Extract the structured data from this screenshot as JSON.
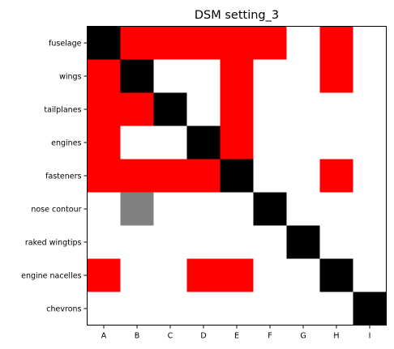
{
  "chart_data": {
    "type": "heatmap",
    "title": "DSM setting_3",
    "xlabel": "",
    "ylabel": "",
    "row_labels": [
      "fuselage",
      "wings",
      "tailplanes",
      "engines",
      "fasteners",
      "nose contour",
      "raked wingtips",
      "engine nacelles",
      "chevrons"
    ],
    "col_labels": [
      "A",
      "B",
      "C",
      "D",
      "E",
      "F",
      "G",
      "H",
      "I"
    ],
    "legend": {
      "0": "none",
      "1": "dependency",
      "2": "weak dependency",
      "d": "diagonal"
    },
    "colors": {
      "0": "#ffffff",
      "1": "#ff0000",
      "2": "#808080",
      "d": "#000000"
    },
    "matrix": [
      [
        "d",
        1,
        1,
        1,
        1,
        1,
        0,
        1,
        0
      ],
      [
        1,
        "d",
        0,
        0,
        1,
        0,
        0,
        1,
        0
      ],
      [
        1,
        1,
        "d",
        0,
        1,
        0,
        0,
        0,
        0
      ],
      [
        1,
        0,
        0,
        "d",
        1,
        0,
        0,
        0,
        0
      ],
      [
        1,
        1,
        1,
        1,
        "d",
        0,
        0,
        1,
        0
      ],
      [
        0,
        2,
        0,
        0,
        0,
        "d",
        0,
        0,
        0
      ],
      [
        0,
        0,
        0,
        0,
        0,
        0,
        "d",
        0,
        0
      ],
      [
        1,
        0,
        0,
        1,
        1,
        0,
        0,
        "d",
        0
      ],
      [
        0,
        0,
        0,
        0,
        0,
        0,
        0,
        0,
        "d"
      ]
    ]
  }
}
